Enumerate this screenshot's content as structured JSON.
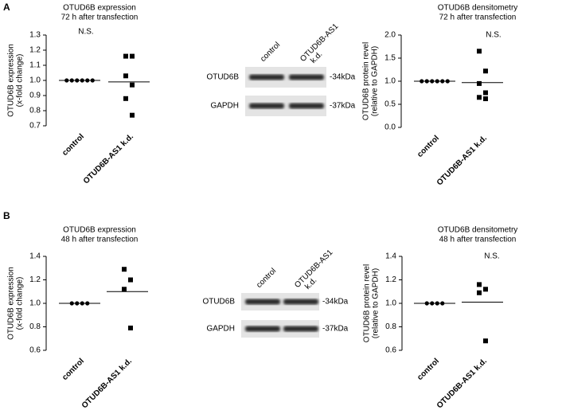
{
  "panels": [
    "A",
    "B"
  ],
  "chart_data": [
    {
      "type": "dot",
      "title": "OTUD6B expression",
      "subtitle": "72 h after transfection",
      "ylabel": [
        "OTUD6B expression",
        "(x-fold change)"
      ],
      "annotation": "N.S.",
      "categories": [
        "control",
        "OTUD6B-AS1 k.d."
      ],
      "points": [
        [
          1,
          1,
          1,
          1,
          1,
          1
        ],
        [
          1.16,
          1.16,
          1.03,
          0.97,
          0.88,
          0.77
        ]
      ],
      "means": [
        1,
        0.99
      ],
      "ylim": [
        0.7,
        1.3
      ],
      "yticks": [
        0.7,
        0.8,
        0.9,
        {
          "value": 1,
          "label": "1.0"
        },
        1.1,
        1.2,
        1.3
      ],
      "color": "#000000"
    },
    {
      "type": "dot",
      "title": "OTUD6B densitometry",
      "subtitle": "72 h after transfection",
      "ylabel": [
        "OTUD6B protein revel",
        "(relative to GAPDH)"
      ],
      "annotation": "N.S.",
      "categories": [
        "control",
        "OTUD6B-AS1 k.d."
      ],
      "points": [
        [
          1,
          1,
          1,
          1,
          1,
          1
        ],
        [
          1.65,
          1.22,
          0.95,
          0.75,
          0.65,
          0.62
        ]
      ],
      "means": [
        1,
        0.97
      ],
      "ylim": [
        0,
        2
      ],
      "yticks": [
        {
          "value": 0,
          "label": "0.0"
        },
        0.5,
        {
          "value": 1,
          "label": "1.0"
        },
        1.5,
        {
          "value": 2,
          "label": "2.0"
        }
      ],
      "color": "#000000"
    },
    {
      "type": "dot",
      "title": "OTUD6B expression",
      "subtitle": "48 h after transfection",
      "ylabel": [
        "OTUD6B expression",
        "(x-fold change)"
      ],
      "categories": [
        "control",
        "OTUD6B-AS1 k.d."
      ],
      "points": [
        [
          1,
          1,
          1,
          1
        ],
        [
          1.29,
          1.2,
          1.12,
          0.79
        ]
      ],
      "means": [
        1,
        1.1
      ],
      "ylim": [
        0.6,
        1.4
      ],
      "yticks": [
        0.6,
        0.8,
        {
          "value": 1,
          "label": "1.0"
        },
        1.2,
        1.4
      ],
      "color": "#000000"
    },
    {
      "type": "dot",
      "title": "OTUD6B densitometry",
      "subtitle": "48 h after transfection",
      "ylabel": [
        "OTUD6B protein revel",
        "(relative to GAPDH)"
      ],
      "annotation": "N.S.",
      "categories": [
        "control",
        "OTUD6B-AS1 k.d."
      ],
      "points": [
        [
          1,
          1,
          1,
          1
        ],
        [
          1.16,
          1.12,
          1.09,
          0.68
        ]
      ],
      "means": [
        1,
        1.01
      ],
      "ylim": [
        0.6,
        1.4
      ],
      "yticks": [
        0.6,
        0.8,
        {
          "value": 1,
          "label": "1.0"
        },
        1.2,
        1.4
      ],
      "color": "#000000"
    }
  ],
  "blots": [
    {
      "lanes": [
        [
          "control"
        ],
        [
          "OTUD6B-AS1",
          "k.d."
        ]
      ],
      "rows": [
        {
          "name": "OTUD6B",
          "size": "-34kDa"
        },
        {
          "name": "GAPDH",
          "size": "-37kDa"
        }
      ]
    },
    {
      "lanes": [
        [
          "control"
        ],
        [
          "OTUD6B-AS1",
          "k.d."
        ]
      ],
      "rows": [
        {
          "name": "OTUD6B",
          "size": "-34kDa"
        },
        {
          "name": "GAPDH",
          "size": "-37kDa"
        }
      ]
    }
  ]
}
